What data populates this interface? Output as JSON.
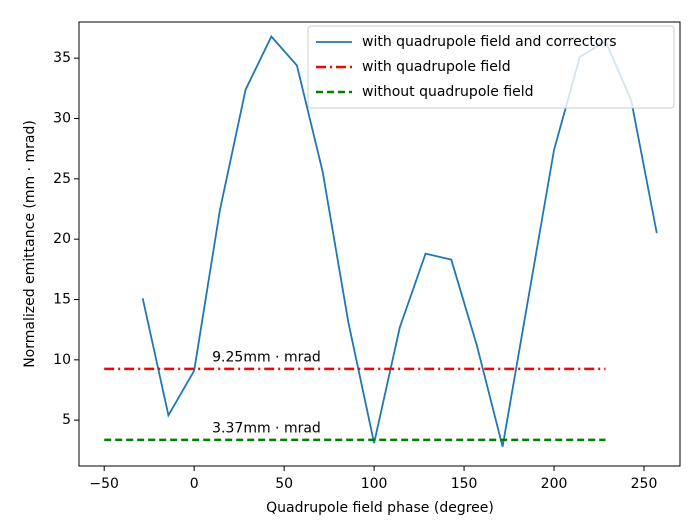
{
  "chart_data": {
    "type": "line",
    "xlabel": "Quadrupole field phase (degree)",
    "ylabel": "Normalized emittance (mm · mrad)",
    "series": [
      {
        "name": "with quadrupole field and correctors",
        "color": "#1f77b4",
        "style": "solid",
        "x": [
          -28.6,
          -14.3,
          0,
          14.3,
          28.6,
          42.9,
          57.1,
          71.4,
          85.7,
          100,
          114.3,
          128.6,
          142.9,
          157.1,
          171.4,
          185.7,
          200,
          214.3,
          228.6,
          242.9,
          257.1
        ],
        "values": [
          15.1,
          5.4,
          9.1,
          22.4,
          32.4,
          36.8,
          34.4,
          25.6,
          13.1,
          3.1,
          12.7,
          18.8,
          18.3,
          11.2,
          2.8,
          15.1,
          27.4,
          35.1,
          36.4,
          31.5,
          20.5
        ]
      },
      {
        "name": "with quadrupole field",
        "color": "#ff0000",
        "style": "dashdot",
        "x": [
          -50,
          228.6
        ],
        "values": [
          9.25,
          9.25
        ]
      },
      {
        "name": "without quadrupole field",
        "color": "#008000",
        "style": "dashed",
        "x": [
          -50,
          228.6
        ],
        "values": [
          3.37,
          3.37
        ]
      }
    ],
    "annotations": [
      {
        "text": "9.25mm · mrad",
        "x": 10,
        "y": 10.2
      },
      {
        "text": "3.37mm · mrad",
        "x": 10,
        "y": 4.3
      }
    ],
    "xlim": [
      -64,
      270
    ],
    "ylim": [
      1.2,
      38
    ],
    "xticks": [
      {
        "value": -50,
        "label": "−50"
      },
      0,
      50,
      100,
      150,
      200,
      250
    ],
    "yticks": [
      5,
      10,
      15,
      20,
      25,
      30,
      35
    ],
    "legend": "upper right"
  }
}
